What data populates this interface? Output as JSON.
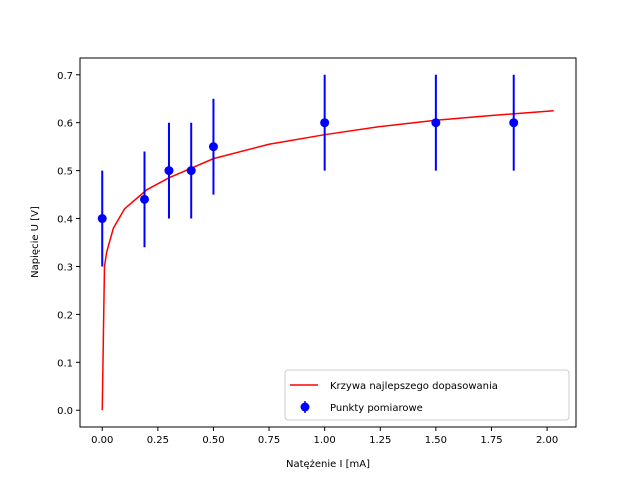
{
  "chart_data": {
    "type": "scatter",
    "xlabel": "Natężenie I [mA]",
    "ylabel": "Napięcie U [V]",
    "xlim": [
      -0.1,
      2.13
    ],
    "ylim": [
      -0.035,
      0.735
    ],
    "grid": false,
    "legend_position": "bottom-right",
    "x_ticks": [
      0.0,
      0.25,
      0.5,
      0.75,
      1.0,
      1.25,
      1.5,
      1.75,
      2.0
    ],
    "x_tick_labels": [
      "0.00",
      "0.25",
      "0.50",
      "0.75",
      "1.00",
      "1.25",
      "1.50",
      "1.75",
      "2.00"
    ],
    "y_ticks": [
      0.0,
      0.1,
      0.2,
      0.3,
      0.4,
      0.5,
      0.6,
      0.7
    ],
    "y_tick_labels": [
      "0.0",
      "0.1",
      "0.2",
      "0.3",
      "0.4",
      "0.5",
      "0.6",
      "0.7"
    ],
    "series": [
      {
        "name": "Punkty pomiarowe",
        "kind": "errorbar",
        "color": "#0000ff",
        "points": [
          {
            "x": 0.0,
            "y": 0.4,
            "yerr": 0.1
          },
          {
            "x": 0.19,
            "y": 0.44,
            "yerr": 0.1
          },
          {
            "x": 0.3,
            "y": 0.5,
            "yerr": 0.1
          },
          {
            "x": 0.4,
            "y": 0.5,
            "yerr": 0.1
          },
          {
            "x": 0.5,
            "y": 0.55,
            "yerr": 0.1
          },
          {
            "x": 1.0,
            "y": 0.6,
            "yerr": 0.1
          },
          {
            "x": 1.5,
            "y": 0.6,
            "yerr": 0.1
          },
          {
            "x": 1.85,
            "y": 0.6,
            "yerr": 0.1
          }
        ]
      },
      {
        "name": "Krzywa najlepszego dopasowania",
        "kind": "line",
        "color": "#ff0000",
        "x": [
          0.0,
          0.01,
          0.02,
          0.05,
          0.1,
          0.2,
          0.3,
          0.5,
          0.75,
          1.0,
          1.25,
          1.5,
          1.75,
          2.03
        ],
        "y": [
          0.0,
          0.3,
          0.33,
          0.38,
          0.42,
          0.46,
          0.485,
          0.525,
          0.555,
          0.575,
          0.592,
          0.605,
          0.615,
          0.625
        ]
      }
    ]
  }
}
